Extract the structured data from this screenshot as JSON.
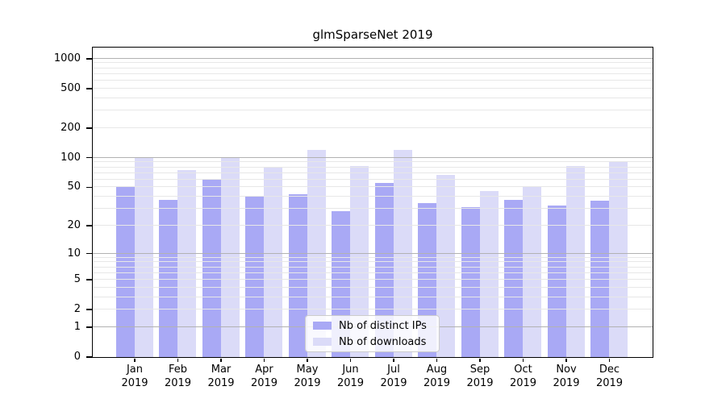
{
  "chart_data": {
    "type": "bar",
    "title": "glmSparseNet 2019",
    "xlabel": "",
    "ylabel": "",
    "categories": [
      "Jan",
      "Feb",
      "Mar",
      "Apr",
      "May",
      "Jun",
      "Jul",
      "Aug",
      "Sep",
      "Oct",
      "Nov",
      "Dec"
    ],
    "category_year": "2019",
    "series": [
      {
        "name": "Nb of distinct IPs",
        "color": "#a9a9f5",
        "values": [
          50,
          37,
          60,
          40,
          42,
          28,
          55,
          34,
          31,
          37,
          32,
          36
        ]
      },
      {
        "name": "Nb of downloads",
        "color": "#dbdbf8",
        "values": [
          100,
          74,
          100,
          80,
          120,
          82,
          118,
          66,
          45,
          50,
          82,
          92
        ]
      }
    ],
    "y_axis": {
      "scale": "log10(value+1)",
      "tick_labels": [
        0,
        1,
        2,
        5,
        10,
        20,
        50,
        100,
        200,
        500,
        1000
      ],
      "major_gridlines": [
        1,
        10,
        100,
        1000
      ],
      "minor_gridlines": [
        2,
        3,
        4,
        5,
        6,
        7,
        8,
        9,
        20,
        30,
        40,
        50,
        60,
        70,
        80,
        90,
        200,
        300,
        400,
        500,
        600,
        700,
        800,
        900
      ],
      "ylim": [
        0,
        1300
      ]
    },
    "grid": "on",
    "legend": {
      "position": "lower-center-inside",
      "entries": [
        "Nb of distinct IPs",
        "Nb of downloads"
      ]
    },
    "colors": {
      "bar_distinct_ips": "#a9a9f5",
      "bar_downloads": "#dbdbf8",
      "major_grid": "#b2b2b2",
      "minor_grid": "#e7e7e7",
      "axis": "#000000",
      "legend_border": "#cccccc",
      "legend_bg": "rgba(255,255,255,0.82)"
    }
  }
}
